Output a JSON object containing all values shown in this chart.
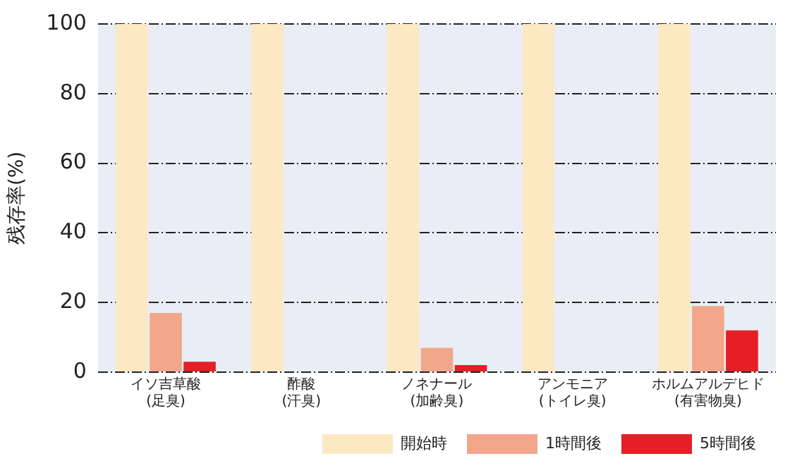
{
  "chart_data": {
    "type": "bar",
    "ylabel": "残存率(%)",
    "categories": [
      "イソ吉草酸\n(足臭)",
      "酢酸\n(汗臭)",
      "ノネナール\n(加齢臭)",
      "アンモニア\n(トイレ臭)",
      "ホルムアルデヒド\n(有害物臭)"
    ],
    "series": [
      {
        "name": "開始時",
        "color": "#fde8c4",
        "values": [
          100,
          100,
          100,
          100,
          100
        ]
      },
      {
        "name": "1時間後",
        "color": "#f2a78a",
        "values": [
          17,
          0,
          7,
          0,
          19
        ]
      },
      {
        "name": "5時間後",
        "color": "#e61e25",
        "values": [
          3,
          0,
          2,
          0,
          12
        ]
      }
    ],
    "ylim": [
      0,
      100
    ],
    "yticks": [
      0,
      20,
      40,
      60,
      80,
      100
    ],
    "grid": "y",
    "legend": "bottom right"
  }
}
